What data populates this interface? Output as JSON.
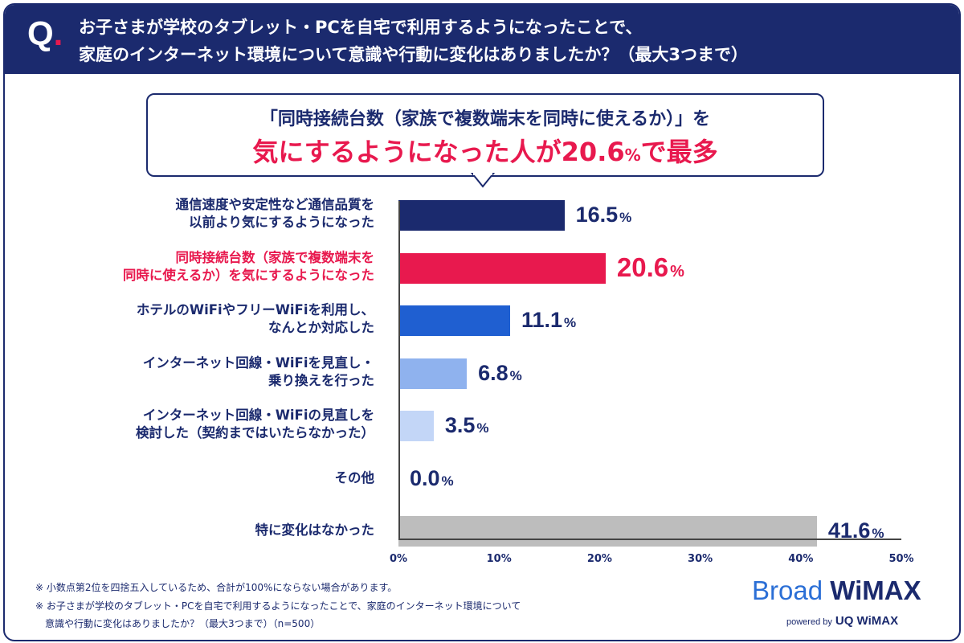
{
  "header": {
    "q_mark": "Q",
    "q_dot": ".",
    "question_line1": "お子さまが学校のタブレット・PCを自宅で利用するようになったことで、",
    "question_line2": "家庭のインターネット環境について意識や行動に変化はありましたか？（最大3つまで）"
  },
  "callout": {
    "line1": "「同時接続台数（家族で複数端末を同時に使えるか）」を",
    "line2_prefix": "気にするようになった人が",
    "line2_value": "20.6",
    "line2_unit": "%",
    "line2_suffix": "で最多"
  },
  "chart_data": {
    "type": "bar",
    "orientation": "horizontal",
    "categories": [
      {
        "line1": "通信速度や安定性など通信品質を",
        "line2": "以前より気にするようになった"
      },
      {
        "line1": "同時接続台数（家族で複数端末を",
        "line2": "同時に使えるか）を気にするようになった"
      },
      {
        "line1": "ホテルのWiFiやフリーWiFiを利用し、",
        "line2": "なんとか対応した"
      },
      {
        "line1": "インターネット回線・WiFiを見直し・",
        "line2": "乗り換えを行った"
      },
      {
        "line1": "インターネット回線・WiFiの見直しを",
        "line2": "検討した（契約まではいたらなかった）"
      },
      {
        "line1": "その他",
        "line2": ""
      },
      {
        "line1": "特に変化はなかった",
        "line2": ""
      }
    ],
    "values": [
      16.5,
      20.6,
      11.1,
      6.8,
      3.5,
      0.0,
      41.6
    ],
    "value_labels": [
      "16.5",
      "20.6",
      "11.1",
      "6.8",
      "3.5",
      "0.0",
      "41.6"
    ],
    "unit": "%",
    "highlight_index": 1,
    "colors": [
      "#1b2a6e",
      "#e8194e",
      "#1f5fd1",
      "#8fb2ee",
      "#c3d6f7",
      "#c3d6f7",
      "#bdbdbd"
    ],
    "xlim": [
      0,
      50
    ],
    "xticks": [
      "0%",
      "10%",
      "20%",
      "30%",
      "40%",
      "50%"
    ],
    "xtick_values": [
      0,
      10,
      20,
      30,
      40,
      50
    ]
  },
  "notes": [
    "※ 小数点第2位を四捨五入しているため、合計が100%にならない場合があります。",
    "※ お子さまが学校のタブレット・PCを自宅で利用するようになったことで、家庭のインターネット環境について",
    "　意識や行動に変化はありましたか？（最大3つまで）（n=500）"
  ],
  "logo": {
    "broad": "Broad",
    "wimax": "WiMAX",
    "powered_by": "powered by",
    "uq_wimax": "UQ WiMAX"
  },
  "colors": {
    "navy": "#1b2a6e",
    "accent": "#e8194e"
  }
}
